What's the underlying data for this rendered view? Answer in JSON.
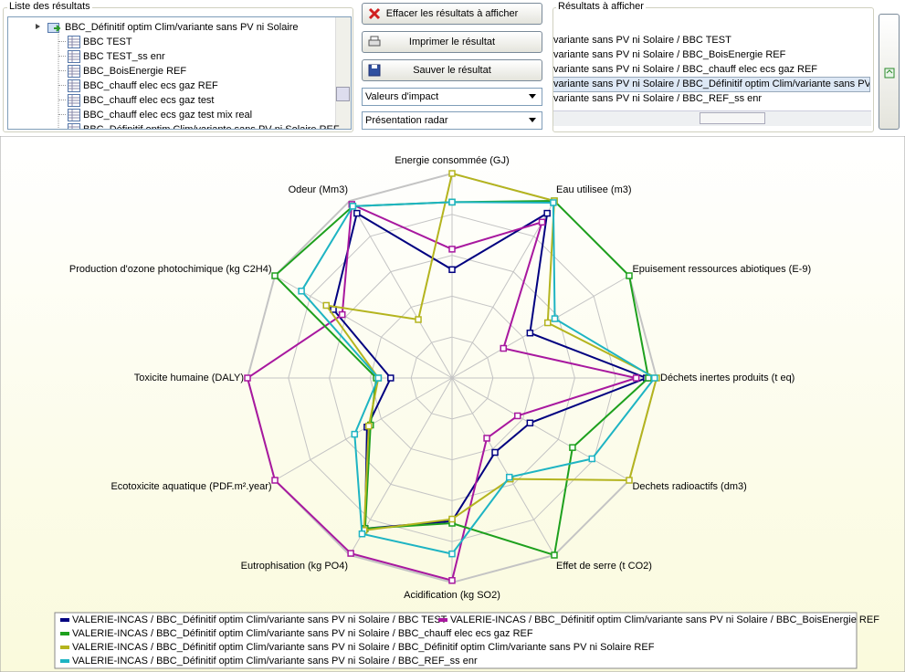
{
  "ui": {
    "results_list": {
      "title": "Liste des résultats",
      "root": "BBC_Définitif optim Clim/variante sans PV ni Solaire",
      "items": [
        "BBC TEST",
        "BBC TEST_ss enr",
        "BBC_BoisEnergie REF",
        "BBC_chauff elec ecs gaz REF",
        "BBC_chauff elec ecs gaz test",
        "BBC_chauff elec ecs gaz test mix real",
        "BBC_Définitif optim Clim/variante sans PV ni Solaire REF"
      ]
    },
    "buttons": [
      "Effacer les résultats à afficher",
      "Imprimer le résultat",
      "Sauver le résultat"
    ],
    "dropdowns": [
      "Valeurs d'impact",
      "Présentation radar"
    ],
    "display_list": {
      "title": "Résultats à afficher",
      "items": [
        "variante sans PV ni Solaire / BBC TEST",
        "variante sans PV ni Solaire / BBC_BoisEnergie REF",
        "variante sans PV ni Solaire / BBC_chauff elec ecs gaz REF",
        "variante sans PV ni Solaire / BBC_Définitif optim Clim/variante sans PV ni Solaire",
        "variante sans PV ni Solaire / BBC_REF_ss enr"
      ]
    }
  },
  "chart_data": {
    "type": "radar",
    "categories": [
      "Energie consommée (GJ)",
      "Eau utilisee (m3)",
      "Epuisement ressources abiotiques (E-9)",
      "Déchets inertes produits (t eq)",
      "Dechets radioactifs (dm3)",
      "Effet de serre (t CO2)",
      "Acidification (kg SO2)",
      "Eutrophisation (kg PO4)",
      "Ecotoxicite aquatique (PDF.m².year)",
      "Toxicite humaine (DALY)",
      "Production d'ozone photochimique (kg C2H4)",
      "Odeur (Mm3)"
    ],
    "rlim": [
      0,
      1
    ],
    "rticks": [
      0.2,
      0.4,
      0.6,
      0.8,
      1
    ],
    "grid": true,
    "series": [
      {
        "name": "VALERIE-INCAS / BBC_Définitif optim Clim/variante sans PV ni Solaire / BBC TEST",
        "color": "#000080",
        "values": [
          0.53,
          0.93,
          0.44,
          0.95,
          0.44,
          0.42,
          0.7,
          0.85,
          0.48,
          0.3,
          0.67,
          0.93
        ]
      },
      {
        "name": "VALERIE-INCAS / BBC_Définitif optim Clim/variante sans PV ni Solaire / BBC_BoisEnergie REF",
        "color": "#a8189f",
        "values": [
          0.63,
          0.88,
          0.29,
          0.9,
          0.37,
          0.34,
          0.99,
          0.99,
          1.0,
          1.0,
          0.62,
          0.98
        ]
      },
      {
        "name": "VALERIE-INCAS / BBC_Définitif optim Clim/variante sans PV ni Solaire / BBC_chauff elec ecs gaz REF",
        "color": "#1ea01e",
        "values": [
          0.86,
          1.0,
          1.0,
          0.96,
          0.68,
          1.0,
          0.71,
          0.85,
          0.46,
          0.37,
          1.0,
          0.97
        ]
      },
      {
        "name": "VALERIE-INCAS / BBC_Définitif optim Clim/variante sans PV ni Solaire / BBC_Définitif optim Clim/variante sans PV ni Solaire REF",
        "color": "#b4b41e",
        "values": [
          1.0,
          1.0,
          0.54,
          1.0,
          1.0,
          0.57,
          0.69,
          0.86,
          0.47,
          0.36,
          0.71,
          0.33
        ]
      },
      {
        "name": "VALERIE-INCAS / BBC_Définitif optim Clim/variante sans PV ni Solaire / BBC_REF_ss enr",
        "color": "#1eb4c3",
        "values": [
          0.86,
          0.99,
          0.58,
          0.99,
          0.79,
          0.56,
          0.86,
          0.88,
          0.55,
          0.36,
          0.85,
          0.97
        ]
      }
    ]
  }
}
